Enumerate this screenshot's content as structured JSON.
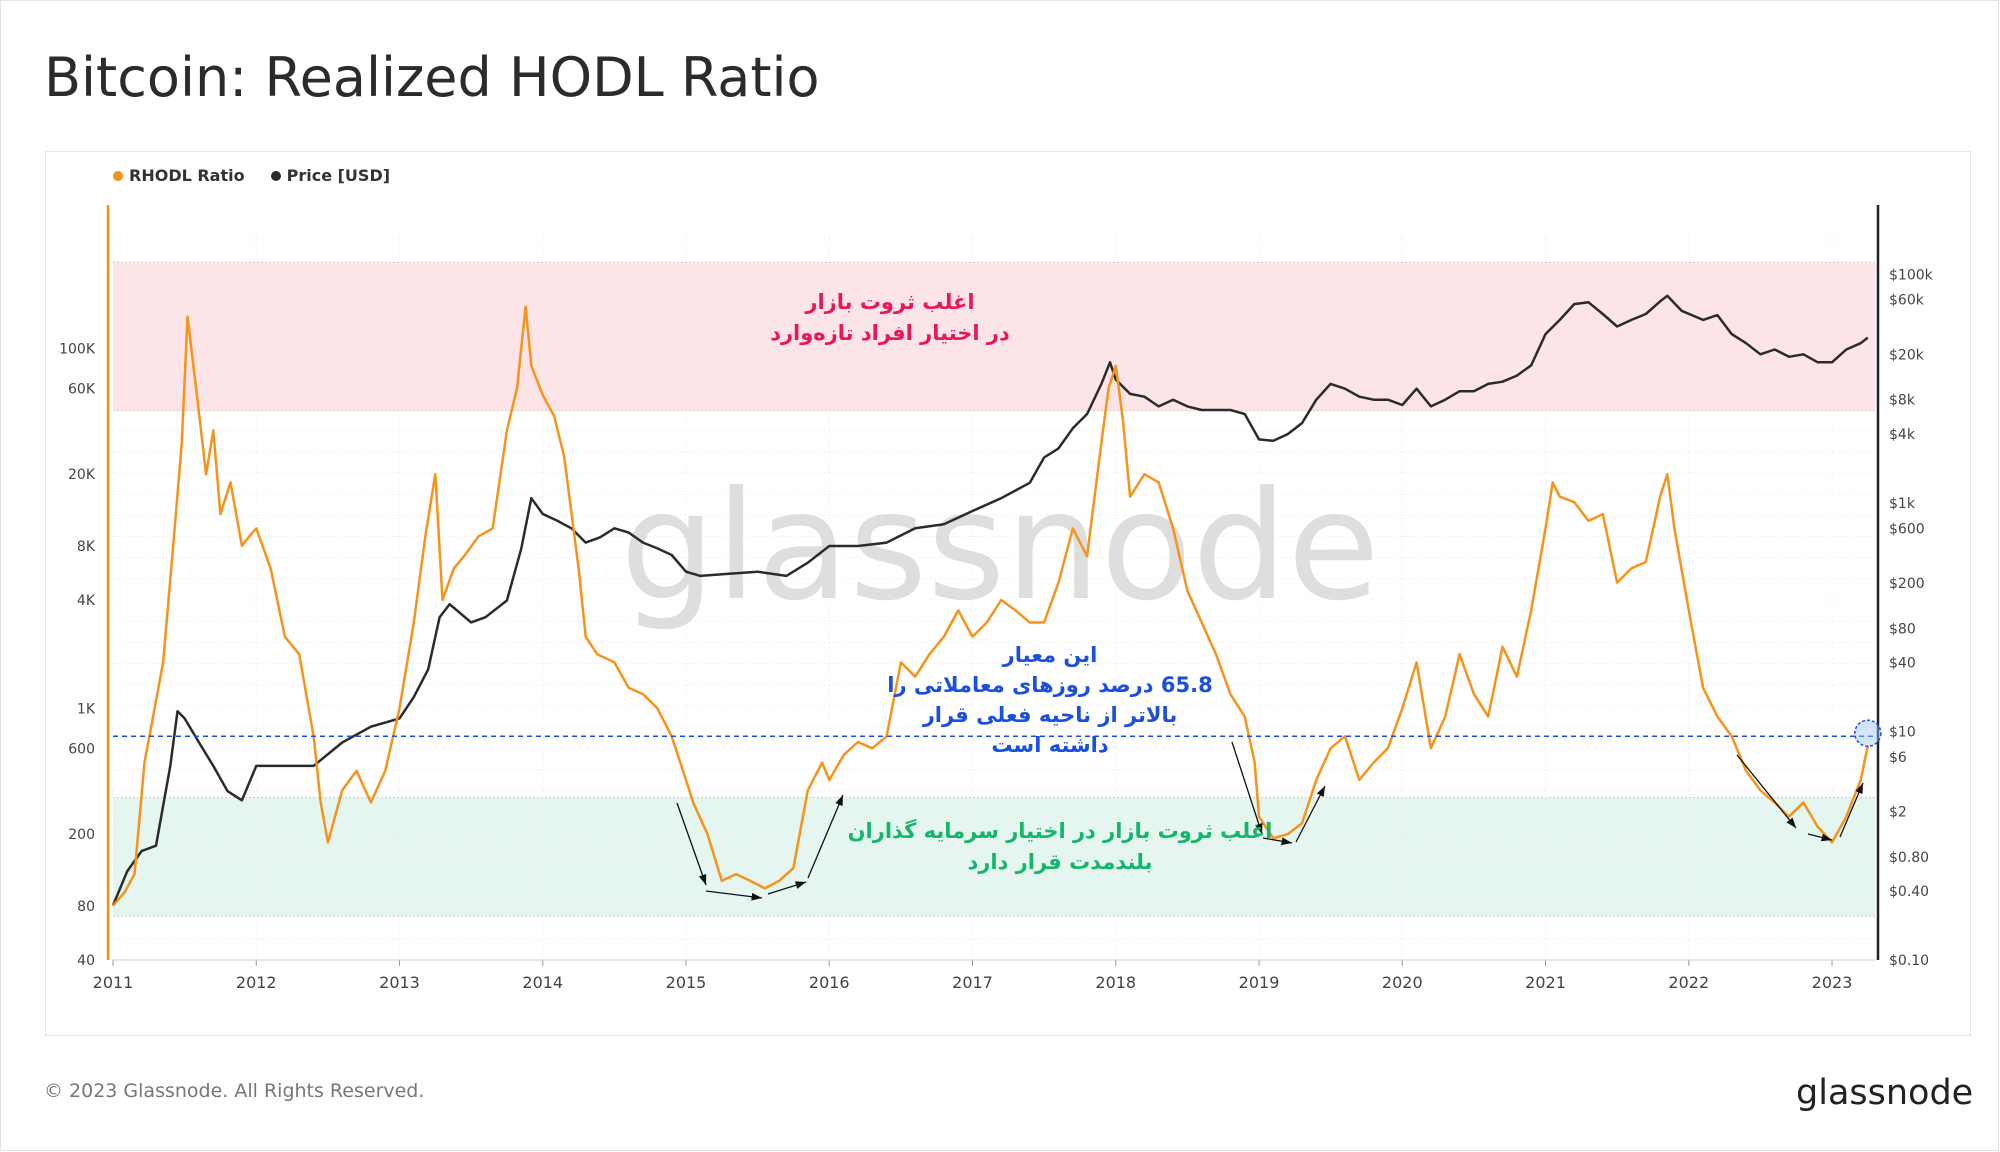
{
  "title": "Bitcoin: Realized HODL Ratio",
  "footer": {
    "copyright": "© 2023 Glassnode. All Rights Reserved.",
    "logo": "glassnode"
  },
  "watermark": "glassnode",
  "colors": {
    "rhodl": "#f7931a",
    "price": "#2b2b2b",
    "red_band": "#fde2e4",
    "green_band": "#e2f5ee",
    "threshold_line": "#1a4fe0",
    "ann_red": "#e8175d",
    "ann_blue": "#1a4fe0",
    "ann_green": "#12b76a"
  },
  "annotations": {
    "red_band": [
      "اغلب ثروت بازار",
      "در اختیار افراد تازه‌وارد"
    ],
    "blue": [
      "این معیار",
      "65.8 درصد روزهای معاملاتی را",
      "بالاتر از ناحیه فعلی قرار",
      "داشته است"
    ],
    "green_band": [
      "اغلب ثروت بازار در اختیار سرمایه گذاران",
      "بلندمدت قرار دارد"
    ]
  },
  "chart_data": {
    "type": "line",
    "legend": [
      "RHODL Ratio",
      "Price [USD]"
    ],
    "legend_position": "top-left",
    "grid": true,
    "x_ticks": [
      "2011",
      "2012",
      "2013",
      "2014",
      "2015",
      "2016",
      "2017",
      "2018",
      "2019",
      "2020",
      "2021",
      "2022",
      "2023"
    ],
    "left_axis": {
      "scale": "log",
      "ticks": [
        "100K",
        "60K",
        "20K",
        "8K",
        "4K",
        "1K",
        "600",
        "200",
        "80",
        "40"
      ],
      "tick_values": [
        100000,
        60000,
        20000,
        8000,
        4000,
        1000,
        600,
        200,
        80,
        40
      ]
    },
    "right_axis": {
      "scale": "log",
      "ticks": [
        "$100k",
        "$60k",
        "$20k",
        "$8k",
        "$4k",
        "$1k",
        "$600",
        "$200",
        "$80",
        "$40",
        "$10",
        "$6",
        "$2",
        "$0.80",
        "$0.40",
        "$0.10"
      ],
      "tick_values": [
        100000,
        60000,
        20000,
        8000,
        4000,
        1000,
        600,
        200,
        80,
        40,
        10,
        6,
        2,
        0.8,
        0.4,
        0.1
      ]
    },
    "bands": [
      {
        "name": "red",
        "from": 45000,
        "to": 300000
      },
      {
        "name": "green",
        "from": 70,
        "to": 320
      }
    ],
    "threshold": 700,
    "series": [
      {
        "name": "RHODL Ratio",
        "x": [
          2011.0,
          2011.08,
          2011.15,
          2011.22,
          2011.3,
          2011.35,
          2011.42,
          2011.48,
          2011.52,
          2011.58,
          2011.65,
          2011.7,
          2011.75,
          2011.82,
          2011.9,
          2011.95,
          2012.0,
          2012.1,
          2012.2,
          2012.3,
          2012.4,
          2012.45,
          2012.5,
          2012.6,
          2012.7,
          2012.8,
          2012.9,
          2013.0,
          2013.1,
          2013.18,
          2013.25,
          2013.3,
          2013.38,
          2013.45,
          2013.55,
          2013.65,
          2013.75,
          2013.82,
          2013.88,
          2013.92,
          2014.0,
          2014.08,
          2014.15,
          2014.25,
          2014.3,
          2014.38,
          2014.5,
          2014.6,
          2014.7,
          2014.8,
          2014.9,
          2015.0,
          2015.05,
          2015.15,
          2015.25,
          2015.35,
          2015.45,
          2015.55,
          2015.65,
          2015.75,
          2015.85,
          2015.95,
          2016.0,
          2016.1,
          2016.2,
          2016.3,
          2016.4,
          2016.5,
          2016.6,
          2016.7,
          2016.8,
          2016.9,
          2017.0,
          2017.1,
          2017.2,
          2017.3,
          2017.4,
          2017.5,
          2017.6,
          2017.7,
          2017.8,
          2017.9,
          2017.95,
          2018.0,
          2018.05,
          2018.1,
          2018.2,
          2018.3,
          2018.4,
          2018.5,
          2018.6,
          2018.7,
          2018.8,
          2018.9,
          2018.97,
          2019.0,
          2019.1,
          2019.2,
          2019.3,
          2019.4,
          2019.5,
          2019.6,
          2019.7,
          2019.8,
          2019.9,
          2020.0,
          2020.1,
          2020.2,
          2020.3,
          2020.4,
          2020.5,
          2020.6,
          2020.7,
          2020.8,
          2020.9,
          2021.0,
          2021.05,
          2021.1,
          2021.2,
          2021.3,
          2021.4,
          2021.5,
          2021.6,
          2021.7,
          2021.8,
          2021.85,
          2021.9,
          2022.0,
          2022.1,
          2022.2,
          2022.3,
          2022.4,
          2022.5,
          2022.6,
          2022.7,
          2022.8,
          2022.9,
          2023.0,
          2023.1,
          2023.2,
          2023.25
        ],
        "values": [
          80,
          95,
          120,
          500,
          1100,
          1800,
          8000,
          30000,
          150000,
          60000,
          20000,
          35000,
          12000,
          18000,
          8000,
          9000,
          10000,
          6000,
          2500,
          2000,
          700,
          300,
          180,
          350,
          450,
          300,
          450,
          1000,
          3000,
          9000,
          20000,
          4000,
          6000,
          7000,
          9000,
          10000,
          35000,
          60000,
          170000,
          80000,
          55000,
          42000,
          25000,
          6000,
          2500,
          2000,
          1800,
          1300,
          1200,
          1000,
          700,
          400,
          300,
          200,
          110,
          120,
          110,
          100,
          110,
          130,
          350,
          500,
          400,
          550,
          650,
          600,
          700,
          1800,
          1500,
          2000,
          2500,
          3500,
          2500,
          3000,
          4000,
          3500,
          3000,
          3000,
          5000,
          10000,
          7000,
          30000,
          60000,
          80000,
          40000,
          15000,
          20000,
          18000,
          10000,
          4500,
          3000,
          2000,
          1200,
          900,
          500,
          250,
          190,
          200,
          230,
          400,
          600,
          700,
          400,
          500,
          600,
          1000,
          1800,
          600,
          900,
          2000,
          1200,
          900,
          2200,
          1500,
          3500,
          10000,
          18000,
          15000,
          14000,
          11000,
          12000,
          5000,
          6000,
          6500,
          15000,
          20000,
          10000,
          3500,
          1300,
          900,
          700,
          450,
          350,
          300,
          250,
          300,
          220,
          180,
          250,
          400,
          620
        ]
      },
      {
        "name": "Price [USD]",
        "x": [
          2011.0,
          2011.1,
          2011.2,
          2011.3,
          2011.4,
          2011.45,
          2011.5,
          2011.6,
          2011.7,
          2011.8,
          2011.9,
          2012.0,
          2012.2,
          2012.4,
          2012.6,
          2012.8,
          2013.0,
          2013.1,
          2013.2,
          2013.28,
          2013.35,
          2013.5,
          2013.6,
          2013.75,
          2013.85,
          2013.92,
          2014.0,
          2014.1,
          2014.2,
          2014.3,
          2014.4,
          2014.5,
          2014.6,
          2014.7,
          2014.8,
          2014.9,
          2015.0,
          2015.1,
          2015.3,
          2015.5,
          2015.7,
          2015.85,
          2016.0,
          2016.2,
          2016.4,
          2016.6,
          2016.8,
          2017.0,
          2017.2,
          2017.4,
          2017.5,
          2017.6,
          2017.7,
          2017.8,
          2017.9,
          2017.96,
          2018.0,
          2018.1,
          2018.2,
          2018.3,
          2018.4,
          2018.5,
          2018.6,
          2018.7,
          2018.8,
          2018.9,
          2019.0,
          2019.1,
          2019.2,
          2019.3,
          2019.4,
          2019.5,
          2019.6,
          2019.7,
          2019.8,
          2019.9,
          2020.0,
          2020.1,
          2020.2,
          2020.3,
          2020.4,
          2020.5,
          2020.6,
          2020.7,
          2020.8,
          2020.9,
          2021.0,
          2021.1,
          2021.2,
          2021.3,
          2021.4,
          2021.5,
          2021.6,
          2021.7,
          2021.8,
          2021.85,
          2021.95,
          2022.1,
          2022.2,
          2022.3,
          2022.4,
          2022.5,
          2022.6,
          2022.7,
          2022.8,
          2022.9,
          2023.0,
          2023.1,
          2023.2,
          2023.25
        ],
        "values": [
          0.3,
          0.6,
          0.9,
          1.0,
          5.0,
          15,
          13,
          8,
          5,
          3.0,
          2.5,
          5,
          5,
          5,
          8,
          11,
          13,
          20,
          35,
          100,
          130,
          90,
          100,
          140,
          400,
          1100,
          800,
          700,
          600,
          450,
          500,
          600,
          550,
          450,
          400,
          350,
          250,
          230,
          240,
          250,
          230,
          300,
          420,
          420,
          450,
          600,
          650,
          850,
          1100,
          1500,
          2500,
          3000,
          4500,
          6000,
          11000,
          17000,
          12000,
          9000,
          8500,
          7000,
          8000,
          7000,
          6500,
          6500,
          6500,
          6000,
          3600,
          3500,
          4000,
          5000,
          8000,
          11000,
          10000,
          8500,
          8000,
          8000,
          7200,
          10000,
          7000,
          8000,
          9500,
          9500,
          11000,
          11500,
          13000,
          16000,
          30000,
          40000,
          55000,
          57000,
          45000,
          35000,
          40000,
          45000,
          58000,
          65000,
          48000,
          40000,
          44000,
          30000,
          25000,
          20000,
          22000,
          19000,
          20000,
          17000,
          17000,
          22000,
          25000,
          28000
        ]
      }
    ]
  }
}
